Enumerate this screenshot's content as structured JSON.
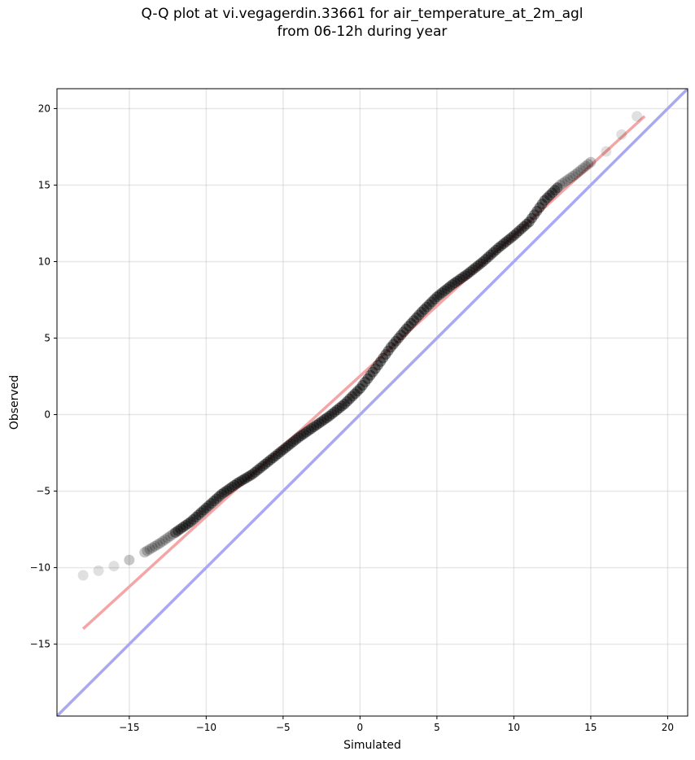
{
  "chart_data": {
    "type": "scatter",
    "title": {
      "line1": "Q-Q plot at vi.vegagerdin.33661 for air_temperature_at_2m_agl",
      "line2": "from 06-12h during year"
    },
    "xlabel": "Simulated",
    "ylabel": "Observed",
    "xlim": [
      -19.7,
      21.3
    ],
    "ylim": [
      -19.7,
      21.3
    ],
    "xticks": [
      -15,
      -10,
      -5,
      0,
      5,
      10,
      15,
      20
    ],
    "yticks": [
      -15,
      -10,
      -5,
      0,
      5,
      10,
      15,
      20
    ],
    "xtick_labels": [
      "−15",
      "−10",
      "−5",
      "0",
      "5",
      "10",
      "15",
      "20"
    ],
    "ytick_labels": [
      "−15",
      "−10",
      "−5",
      "0",
      "5",
      "10",
      "15",
      "20"
    ],
    "grid": true,
    "quantile_points": {
      "color": "#000000",
      "x": [
        -18.0,
        -17.0,
        -16.0,
        -15.0,
        -14.0,
        -13.0,
        -12.0,
        -11.0,
        -10.0,
        -9.0,
        -8.0,
        -7.0,
        -6.0,
        -5.0,
        -4.0,
        -3.0,
        -2.0,
        -1.0,
        0.0,
        1.0,
        2.0,
        3.0,
        4.0,
        5.0,
        6.0,
        7.0,
        8.0,
        9.0,
        10.0,
        11.0,
        12.0,
        13.0,
        14.0,
        15.0,
        16.0,
        17.0,
        18.0
      ],
      "y": [
        -10.5,
        -10.2,
        -9.9,
        -9.5,
        -9.0,
        -8.4,
        -7.7,
        -7.0,
        -6.1,
        -5.2,
        -4.5,
        -3.9,
        -3.1,
        -2.3,
        -1.5,
        -0.8,
        -0.1,
        0.7,
        1.7,
        3.0,
        4.4,
        5.6,
        6.7,
        7.7,
        8.5,
        9.2,
        10.0,
        10.9,
        11.7,
        12.6,
        14.0,
        15.0,
        15.7,
        16.5,
        17.2,
        18.3,
        19.5
      ]
    },
    "fit_line": {
      "color": "#f4a6a6",
      "x": [
        -18.0,
        18.5
      ],
      "y": [
        -14.0,
        19.5
      ]
    },
    "identity_line": {
      "color": "#a8a8f4",
      "x": [
        -19.7,
        21.3
      ],
      "y": [
        -19.7,
        21.3
      ]
    }
  }
}
